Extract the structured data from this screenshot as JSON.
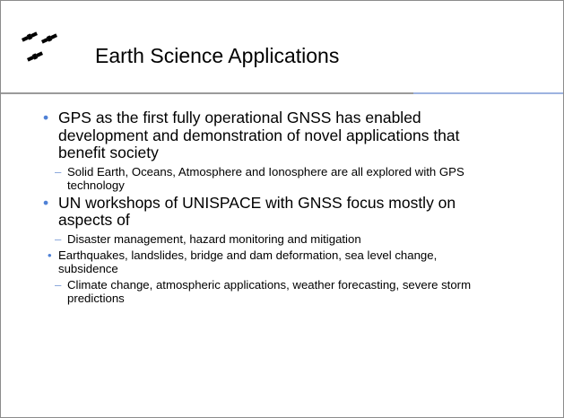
{
  "slide": {
    "title": "Earth Science Applications",
    "bullets": [
      {
        "text": "GPS as the first fully operational GNSS has enabled development and demonstration of novel applications that benefit society",
        "subitems": [
          {
            "text": "Solid Earth, Oceans, Atmosphere and Ionosphere are all explored with GPS technology",
            "subitems": []
          }
        ]
      },
      {
        "text": "UN workshops of UNISPACE with GNSS focus mostly on aspects of",
        "subitems": [
          {
            "text": "Disaster management, hazard monitoring and mitigation",
            "subitems": [
              {
                "text": "Earthquakes, landslides, bridge and dam deformation, sea level change, subsidence"
              }
            ]
          },
          {
            "text": "Climate change, atmospheric applications, weather forecasting, severe storm predictions",
            "subitems": []
          }
        ]
      }
    ]
  }
}
